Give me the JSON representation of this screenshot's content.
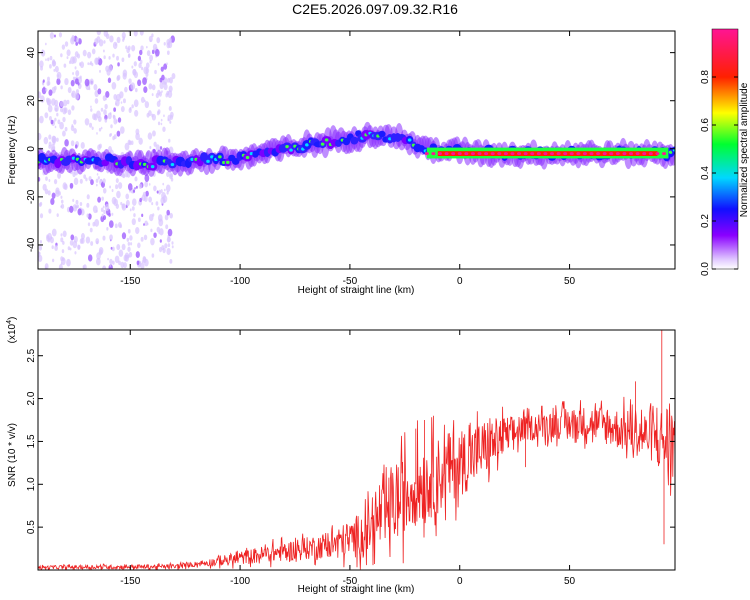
{
  "title": "C2E5.2026.097.09.32.R16",
  "colors": {
    "snr_line": "#ee2222",
    "frame": "#000000",
    "background": "#ffffff"
  },
  "chart_data": [
    {
      "type": "heatmap",
      "name": "spectrogram",
      "xlabel": "Height of straight line (km)",
      "ylabel": "Frequency (Hz)",
      "xlim": [
        -192,
        98
      ],
      "ylim": [
        -50,
        49
      ],
      "xticks": [
        -150,
        -100,
        -50,
        0,
        50
      ],
      "yticks": [
        -40,
        -20,
        0,
        20,
        40
      ],
      "colorbar": {
        "label": "Normalized spectral amplitude",
        "range": [
          0,
          1
        ],
        "ticks": [
          "0.0",
          "0.2",
          "0.4",
          "0.6",
          "0.8"
        ],
        "tick_values": [
          0.0,
          0.2,
          0.4,
          0.6,
          0.8
        ],
        "colormap": [
          "#e8e0ff",
          "#7a00ff",
          "#1a1aff",
          "#00e0ff",
          "#00ff40",
          "#ffff00",
          "#ff2000",
          "#ff1493"
        ]
      },
      "ridge": [
        [
          -190,
          -5
        ],
        [
          -160,
          -5
        ],
        [
          -140,
          -6
        ],
        [
          -120,
          -5
        ],
        [
          -100,
          -4
        ],
        [
          -80,
          0
        ],
        [
          -60,
          3
        ],
        [
          -40,
          6
        ],
        [
          -30,
          5
        ],
        [
          -20,
          2
        ],
        [
          -15,
          0
        ],
        [
          0,
          -1
        ],
        [
          20,
          -2
        ],
        [
          50,
          -2
        ],
        [
          80,
          -2
        ],
        [
          95,
          -2
        ]
      ]
    },
    {
      "type": "line",
      "name": "snr",
      "xlabel": "Height of straight line (km)",
      "ylabel": "SNR (10 * v/v)",
      "y_multiplier": "(x10",
      "y_multiplier_exp": "4",
      "y_multiplier_close": ")",
      "xlim": [
        -192,
        98
      ],
      "ylim": [
        0,
        2.8
      ],
      "xticks": [
        -150,
        -100,
        -50,
        0,
        50
      ],
      "yticks": [
        "0.5",
        "1.0",
        "1.5",
        "2.0",
        "2.5"
      ],
      "ytick_values": [
        0.5,
        1.0,
        1.5,
        2.0,
        2.5
      ],
      "envelope": [
        [
          -192,
          0.03
        ],
        [
          -130,
          0.04
        ],
        [
          -110,
          0.1
        ],
        [
          -90,
          0.18
        ],
        [
          -70,
          0.25
        ],
        [
          -50,
          0.35
        ],
        [
          -40,
          0.5
        ],
        [
          -30,
          0.75
        ],
        [
          -20,
          1.0
        ],
        [
          -10,
          1.1
        ],
        [
          0,
          1.25
        ],
        [
          10,
          1.4
        ],
        [
          20,
          1.55
        ],
        [
          30,
          1.65
        ],
        [
          40,
          1.7
        ],
        [
          60,
          1.72
        ],
        [
          80,
          1.6
        ],
        [
          95,
          1.5
        ]
      ],
      "noise": [
        [
          -192,
          0.02
        ],
        [
          -120,
          0.03
        ],
        [
          -100,
          0.08
        ],
        [
          -60,
          0.15
        ],
        [
          -40,
          0.3
        ],
        [
          -25,
          0.5
        ],
        [
          -10,
          0.45
        ],
        [
          10,
          0.35
        ],
        [
          30,
          0.15
        ],
        [
          60,
          0.2
        ],
        [
          90,
          0.3
        ],
        [
          95,
          0.5
        ]
      ],
      "spikes": [
        [
          -16,
          1.75
        ],
        [
          -12,
          1.8
        ],
        [
          -20,
          1.65
        ],
        [
          30,
          1.2
        ],
        [
          80,
          2.2
        ],
        [
          92,
          2.8
        ],
        [
          93,
          0.3
        ]
      ]
    }
  ]
}
